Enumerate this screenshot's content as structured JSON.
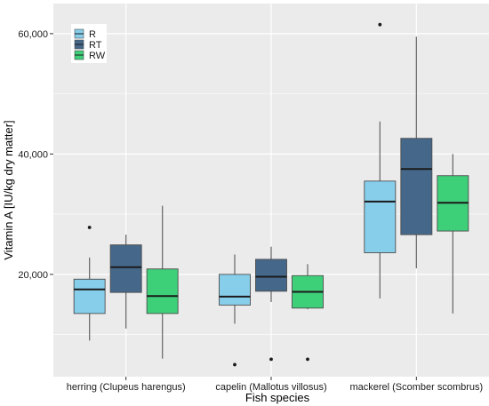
{
  "chart_data": {
    "type": "box",
    "xlabel": "Fish species",
    "ylabel": "Vitamin A [IU/kg dry matter]",
    "ylim": [
      3000,
      65000
    ],
    "y_ticks": [
      20000,
      40000,
      60000
    ],
    "y_tick_labels": [
      "20,000",
      "40,000",
      "60,000"
    ],
    "categories": [
      "herring (Clupeus harengus)",
      "capelin (Mallotus villosus)",
      "mackerel (Scomber scombrus)"
    ],
    "grid": true,
    "legend": {
      "position": "top-left",
      "entries": [
        "R",
        "RT",
        "RW"
      ]
    },
    "colors": {
      "R": "#87ceeb",
      "RT": "#45688a",
      "RW": "#3ecf79",
      "panel": "#ebebeb",
      "grid": "#ffffff"
    },
    "series": [
      {
        "name": "R",
        "boxes": [
          {
            "min": 9000,
            "q1": 13500,
            "median": 17500,
            "q3": 19200,
            "max": 22800,
            "outliers": [
              27800
            ]
          },
          {
            "min": 11800,
            "q1": 14900,
            "median": 16300,
            "q3": 20000,
            "max": 23300,
            "outliers": [
              5000
            ]
          },
          {
            "min": 16000,
            "q1": 23600,
            "median": 32100,
            "q3": 35500,
            "max": 45400,
            "outliers": [
              61500
            ]
          }
        ]
      },
      {
        "name": "RT",
        "boxes": [
          {
            "min": 11000,
            "q1": 17000,
            "median": 21200,
            "q3": 24900,
            "max": 26600,
            "outliers": []
          },
          {
            "min": 15400,
            "q1": 17200,
            "median": 19600,
            "q3": 22500,
            "max": 24600,
            "outliers": [
              5900
            ]
          },
          {
            "min": 21000,
            "q1": 26600,
            "median": 37500,
            "q3": 42600,
            "max": 59500,
            "outliers": []
          }
        ]
      },
      {
        "name": "RW",
        "boxes": [
          {
            "min": 6000,
            "q1": 13500,
            "median": 16400,
            "q3": 20900,
            "max": 31400,
            "outliers": []
          },
          {
            "min": 14200,
            "q1": 14400,
            "median": 17100,
            "q3": 19800,
            "max": 21700,
            "outliers": [
              5900
            ]
          },
          {
            "min": 13500,
            "q1": 27200,
            "median": 31900,
            "q3": 36400,
            "max": 40000,
            "outliers": []
          }
        ]
      }
    ]
  }
}
